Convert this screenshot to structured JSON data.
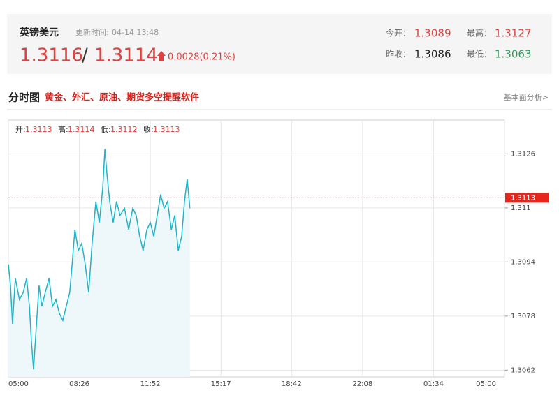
{
  "header": {
    "name": "英镑美元",
    "update_label": "更新时间:",
    "update_time": "04-14 13:48",
    "bid": "1.3116",
    "separator": "/",
    "ask": "1.3114",
    "change": "0.0028(0.21%)",
    "stats": [
      {
        "label": "今开：",
        "value": "1.3089"
      },
      {
        "label": "最高：",
        "value": "1.3127"
      },
      {
        "label": "昨收：",
        "value": "1.3086"
      },
      {
        "label": "最低：",
        "value": "1.3063"
      }
    ]
  },
  "section": {
    "title": "分时图",
    "promo": "黄金、外汇、原油、期货多空提醒软件",
    "link": "基本面分析>"
  },
  "ohlc": [
    {
      "label": "开:",
      "value": "1.3113"
    },
    {
      "label": "高:",
      "value": "1.3114"
    },
    {
      "label": "低:",
      "value": "1.3112"
    },
    {
      "label": "收:",
      "value": "1.3113"
    }
  ],
  "chart_data": {
    "type": "line",
    "color": "#1fb5c8",
    "area_color": "#eef8fb",
    "grid": true,
    "x": [
      0,
      6,
      12,
      20,
      32,
      43,
      53,
      61,
      67,
      73,
      81,
      89,
      97,
      107,
      118,
      128,
      138,
      148,
      158,
      168,
      178,
      185,
      193,
      203,
      213,
      223,
      233,
      243,
      254,
      264,
      274,
      280,
      286,
      294,
      304,
      314,
      324,
      337,
      349,
      361,
      371,
      381,
      391,
      402,
      412,
      422,
      432,
      442,
      452,
      462,
      473,
      483,
      493,
      503,
      511,
      519,
      527
    ],
    "values": [
      1.30933,
      1.30871,
      1.30757,
      1.30892,
      1.30829,
      1.3085,
      1.30892,
      1.30809,
      1.30705,
      1.30622,
      1.30747,
      1.30871,
      1.30809,
      1.3085,
      1.30892,
      1.30809,
      1.30829,
      1.30788,
      1.30767,
      1.30809,
      1.3085,
      1.30933,
      1.31036,
      1.30974,
      1.30995,
      1.30933,
      1.3085,
      1.30995,
      1.31119,
      1.31057,
      1.31161,
      1.31274,
      1.31202,
      1.31119,
      1.31057,
      1.31119,
      1.31078,
      1.31099,
      1.31036,
      1.31099,
      1.31078,
      1.31016,
      1.30974,
      1.31036,
      1.31057,
      1.31016,
      1.31078,
      1.3114,
      1.31099,
      1.31119,
      1.31036,
      1.31078,
      1.30974,
      1.31016,
      1.31119,
      1.31185,
      1.31099
    ],
    "xlim": [
      0,
      1440
    ],
    "xticks": [
      {
        "value": 0,
        "label": "05:00"
      },
      {
        "value": 206,
        "label": "08:26"
      },
      {
        "value": 412,
        "label": "11:52"
      },
      {
        "value": 617,
        "label": "15:17"
      },
      {
        "value": 822,
        "label": "18:42"
      },
      {
        "value": 1028,
        "label": "22:08"
      },
      {
        "value": 1234,
        "label": "01:34"
      },
      {
        "value": 1440,
        "label": "05:00"
      }
    ],
    "ylim": [
      1.306,
      1.3136
    ],
    "yticks": [
      1.3062,
      1.3078,
      1.3094,
      1.311,
      1.3126
    ],
    "reference_line": 1.3113,
    "reference_color": "#e8241d"
  }
}
